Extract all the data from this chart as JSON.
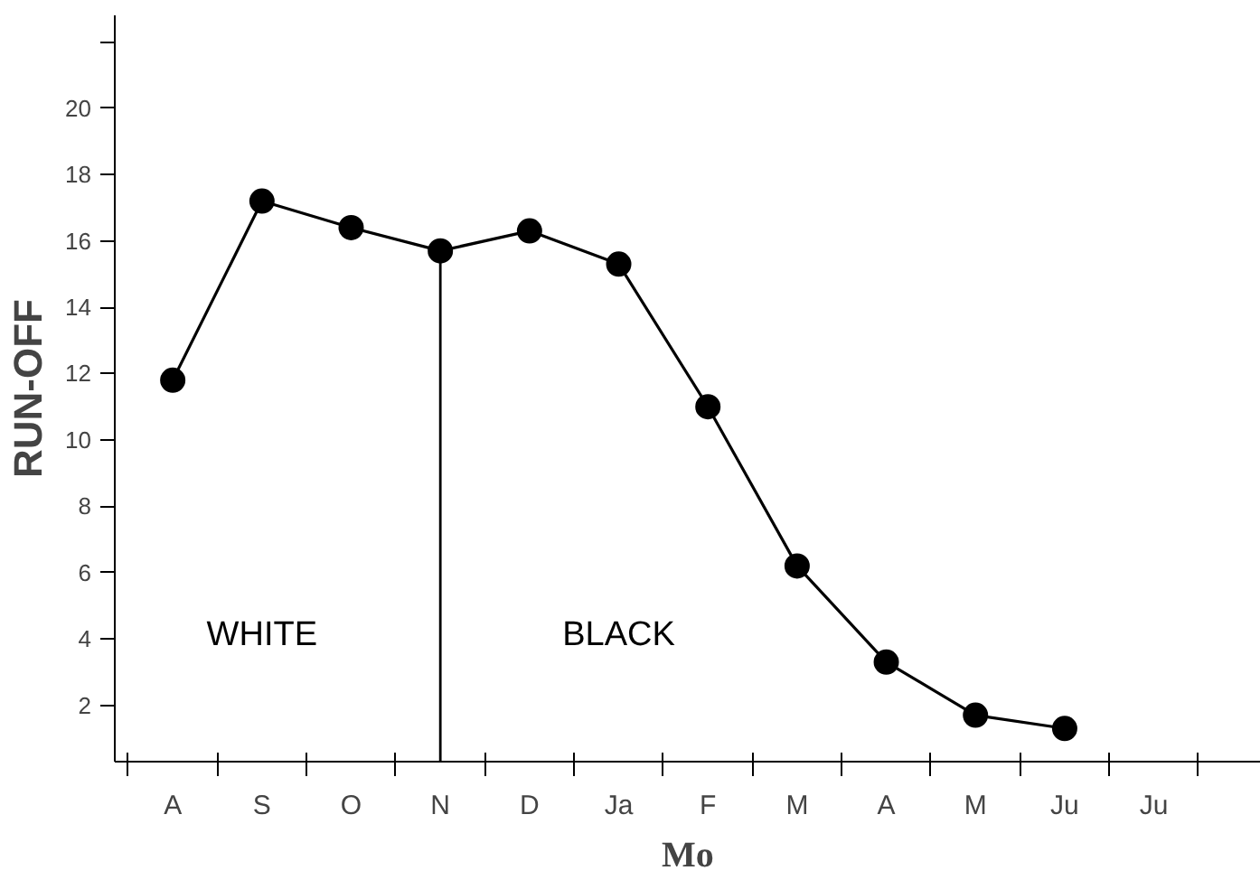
{
  "chart_data": {
    "type": "line",
    "xlabel": "Mo",
    "ylabel": "RUN-OFF",
    "categories": [
      "A",
      "S",
      "O",
      "N",
      "D",
      "Ja",
      "F",
      "M",
      "A",
      "M",
      "Ju",
      "Ju"
    ],
    "series": [
      {
        "color": "#000000",
        "values": [
          11.8,
          17.2,
          16.4,
          15.7,
          16.3,
          15.3,
          11.0,
          6.2,
          3.3,
          1.7,
          1.3,
          null
        ]
      }
    ],
    "ylim": [
      0.3,
      22.8
    ],
    "yticks": [
      2,
      4,
      6,
      8,
      10,
      12,
      14,
      16,
      18,
      20,
      {
        "value": 22,
        "label": null
      }
    ],
    "ref_lines": [
      {
        "axis": "x",
        "value": "N",
        "color": "#000000"
      }
    ],
    "annotations": [
      "WHITE",
      "BLACK"
    ],
    "marker": "circle",
    "line_style": "solid",
    "grid": false
  }
}
